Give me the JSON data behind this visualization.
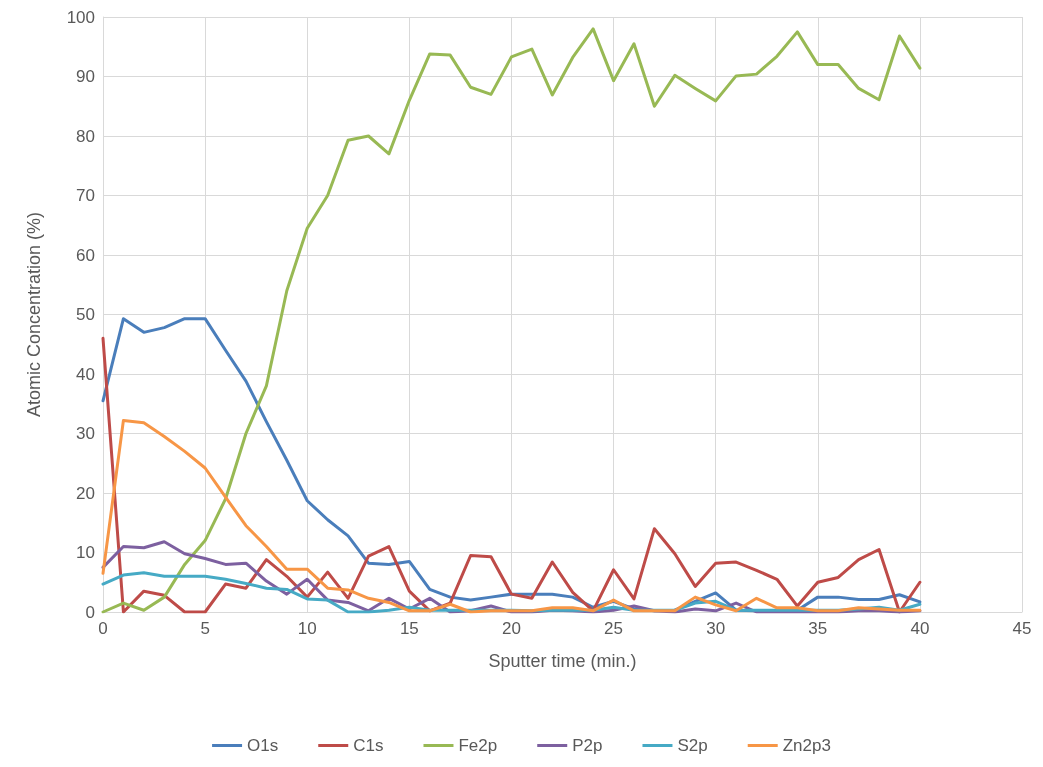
{
  "chart_data": {
    "type": "line",
    "xlabel": "Sputter time (min.)",
    "ylabel": "Atomic Concentration (%)",
    "x": [
      0,
      1,
      2,
      3,
      4,
      5,
      6,
      7,
      8,
      9,
      10,
      11,
      12,
      13,
      14,
      15,
      16,
      17,
      18,
      19,
      20,
      21,
      22,
      23,
      24,
      25,
      26,
      27,
      28,
      29,
      30,
      31,
      32,
      33,
      34,
      35,
      36,
      37,
      38,
      39,
      40
    ],
    "series": [
      {
        "name": "O1s",
        "color": "#4a7ebb",
        "values": [
          35.5,
          49.3,
          47,
          47.8,
          49.3,
          49.3,
          44,
          38.8,
          32,
          25.5,
          18.7,
          15.5,
          12.8,
          8.2,
          8,
          8.5,
          3.8,
          2.5,
          2,
          2.5,
          3,
          3,
          3,
          2.5,
          0.8,
          1.8,
          0.5,
          0.2,
          0.3,
          1.8,
          3.2,
          0.3,
          0.2,
          0.2,
          0.3,
          2.5,
          2.5,
          2.1,
          2.1,
          2.9,
          1.7
        ]
      },
      {
        "name": "C1s",
        "color": "#be4b48",
        "values": [
          46,
          0,
          3.5,
          2.8,
          0,
          0,
          4.7,
          4,
          8.8,
          6,
          2.5,
          6.7,
          2.3,
          9.4,
          11,
          3.5,
          0.2,
          1.5,
          9.5,
          9.3,
          3,
          2.3,
          8.4,
          3.3,
          0.2,
          7.1,
          2.2,
          14,
          9.8,
          4.3,
          8.2,
          8.4,
          7,
          5.5,
          1,
          5,
          5.8,
          8.8,
          10.5,
          0,
          5
        ]
      },
      {
        "name": "Fe2p",
        "color": "#98b954",
        "values": [
          0,
          1.5,
          0.3,
          2.5,
          8,
          12,
          19,
          30,
          38,
          54,
          64.5,
          70,
          79.3,
          80,
          77,
          86,
          93.8,
          93.6,
          88.2,
          87,
          93.3,
          94.6,
          86.9,
          93.2,
          98,
          89.3,
          95.5,
          85,
          90.2,
          88,
          85.9,
          90.1,
          90.4,
          93.4,
          97.5,
          92,
          92,
          88,
          86.1,
          96.8,
          91.4
        ]
      },
      {
        "name": "P2p",
        "color": "#7d60a0",
        "values": [
          7.5,
          11,
          10.8,
          11.8,
          9.8,
          9,
          8,
          8.2,
          5.2,
          3,
          5.5,
          2,
          1.6,
          0.2,
          2.3,
          0.5,
          2.3,
          0,
          0.2,
          1,
          0,
          0,
          0.3,
          0.2,
          0,
          0.3,
          1,
          0.2,
          0,
          0.5,
          0.2,
          1.5,
          0,
          0,
          0,
          0,
          0,
          0.2,
          0.2,
          0,
          0.2
        ]
      },
      {
        "name": "S2p",
        "color": "#46aac5",
        "values": [
          4.7,
          6.2,
          6.6,
          6,
          6,
          6,
          5.5,
          4.8,
          4,
          3.8,
          2.2,
          2,
          0,
          0,
          0.3,
          0.8,
          0.3,
          0.3,
          0.3,
          0.3,
          0.3,
          0.2,
          0.3,
          0.3,
          0.3,
          0.8,
          0.3,
          0.3,
          0.3,
          1.5,
          1.8,
          0.3,
          0.3,
          0.3,
          0.3,
          0.3,
          0.3,
          0.5,
          0.8,
          0.3,
          1.3
        ]
      },
      {
        "name": "Zn2p3",
        "color": "#f79646",
        "values": [
          6.5,
          32.2,
          31.8,
          29.5,
          27,
          24.2,
          19.3,
          14.5,
          11,
          7.2,
          7.2,
          4,
          3.7,
          2.3,
          1.6,
          0.2,
          0.2,
          1.3,
          0,
          0.2,
          0.2,
          0.2,
          0.7,
          0.7,
          0.2,
          2,
          0.2,
          0.2,
          0.2,
          2.5,
          1.2,
          0.2,
          2.3,
          0.7,
          0.7,
          0.2,
          0.2,
          0.7,
          0.5,
          0.3,
          0.3
        ]
      }
    ],
    "xlim": [
      0,
      45
    ],
    "xticks": [
      0,
      5,
      10,
      15,
      20,
      25,
      30,
      35,
      40,
      45
    ],
    "ylim": [
      0,
      100
    ],
    "yticks": [
      0,
      10,
      20,
      30,
      40,
      50,
      60,
      70,
      80,
      90,
      100
    ],
    "grid": true,
    "legend": "bottom",
    "marker": "none",
    "line_style": "solid"
  }
}
